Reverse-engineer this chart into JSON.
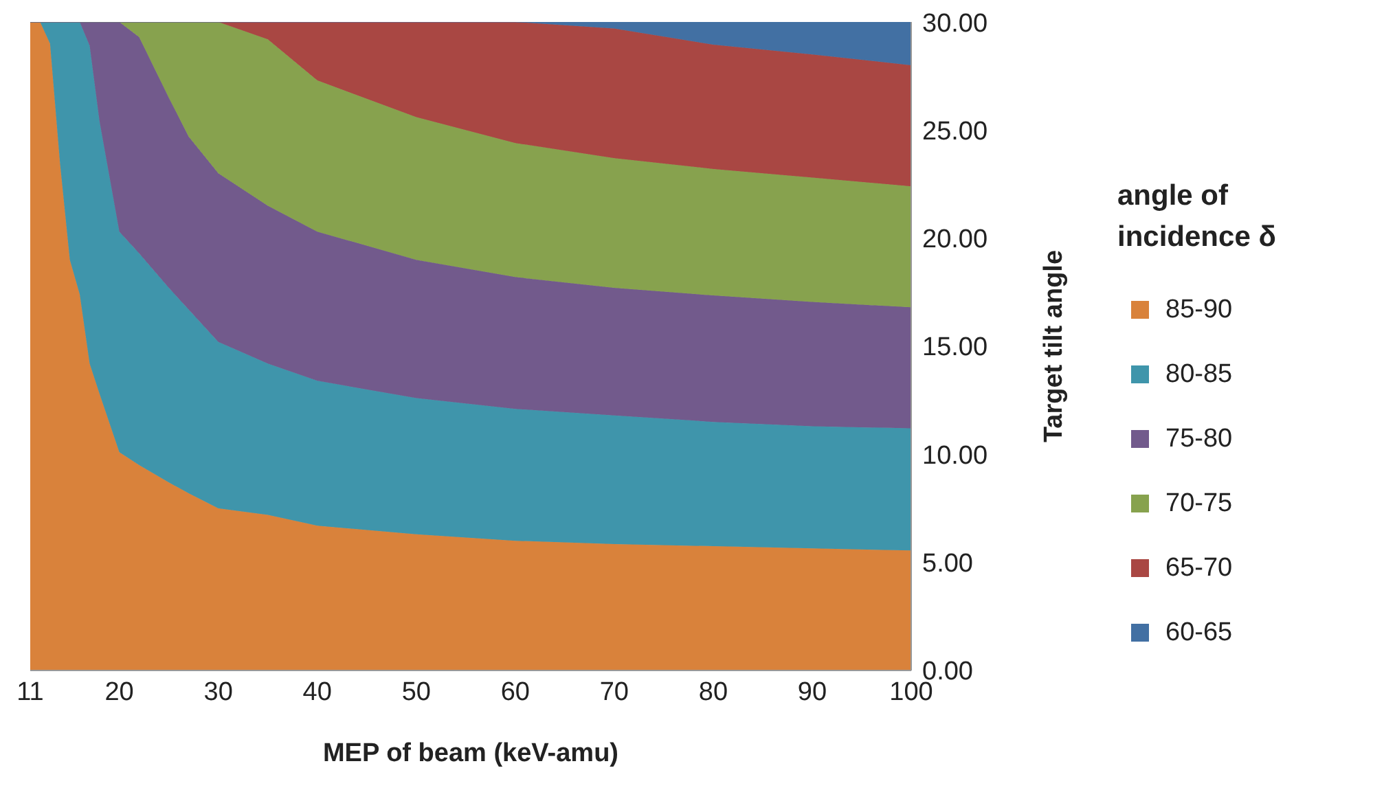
{
  "chart_data": {
    "type": "area",
    "stacked": true,
    "xlabel": "MEP of beam (keV-amu)",
    "ylabel": "Target tilt angle",
    "legend_title": "angle of incidence δ",
    "legend": "right",
    "x": [
      11,
      12,
      13,
      14,
      15,
      16,
      17,
      18,
      20,
      22,
      25,
      27,
      30,
      35,
      40,
      50,
      60,
      70,
      80,
      90,
      100
    ],
    "xlim": [
      11,
      100
    ],
    "xticks": [
      11,
      20,
      30,
      40,
      50,
      60,
      70,
      80,
      90,
      100
    ],
    "ylim": [
      0,
      30
    ],
    "yticks": [
      {
        "value": 0,
        "label": "0.00"
      },
      {
        "value": 5,
        "label": "5.00"
      },
      {
        "value": 10,
        "label": "10.00"
      },
      {
        "value": 15,
        "label": "15.00"
      },
      {
        "value": 20,
        "label": "20.00"
      },
      {
        "value": 25,
        "label": "25.00"
      },
      {
        "value": 30,
        "label": "30.00"
      }
    ],
    "grid": false,
    "series": [
      {
        "name": "85-90",
        "color": "#d9823b",
        "values": [
          30,
          30,
          29,
          23.5,
          19,
          17.4,
          14.2,
          12.8,
          10.1,
          9.5,
          8.7,
          8.2,
          7.5,
          7.2,
          6.7,
          6.3,
          6.0,
          5.85,
          5.75,
          5.65,
          5.55
        ]
      },
      {
        "name": "80-85",
        "color": "#3f95ab",
        "values": [
          0,
          0,
          1,
          6.5,
          11,
          12.6,
          14.7,
          12.6,
          10.2,
          9.8,
          9.0,
          8.5,
          7.7,
          7.0,
          6.7,
          6.3,
          6.1,
          5.95,
          5.75,
          5.65,
          5.65
        ]
      },
      {
        "name": "75-80",
        "color": "#725a8c",
        "values": [
          0,
          0,
          0,
          0,
          0,
          0,
          1.1,
          4.6,
          9.7,
          10.0,
          8.8,
          8.0,
          7.8,
          7.3,
          6.9,
          6.4,
          6.1,
          5.9,
          5.85,
          5.75,
          5.6
        ]
      },
      {
        "name": "70-75",
        "color": "#87a24e",
        "values": [
          0,
          0,
          0,
          0,
          0,
          0,
          0,
          0,
          0,
          0.7,
          3.5,
          5.3,
          7.0,
          7.7,
          7.0,
          6.6,
          6.2,
          6.0,
          5.85,
          5.75,
          5.6
        ]
      },
      {
        "name": "65-70",
        "color": "#a94743",
        "values": [
          0,
          0,
          0,
          0,
          0,
          0,
          0,
          0,
          0,
          0,
          0,
          0,
          0,
          0.8,
          2.7,
          4.4,
          5.6,
          6.0,
          5.75,
          5.7,
          5.6
        ]
      },
      {
        "name": "60-65",
        "color": "#4270a3",
        "values": [
          0,
          0,
          0,
          0,
          0,
          0,
          0,
          0,
          0,
          0,
          0,
          0,
          0,
          0,
          0,
          0,
          0,
          0.3,
          1.05,
          1.5,
          2.0
        ]
      }
    ]
  }
}
